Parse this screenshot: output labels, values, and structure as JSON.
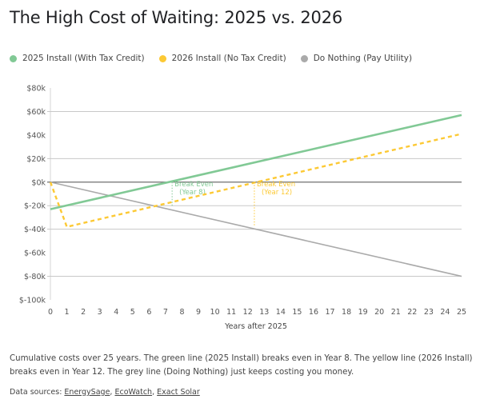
{
  "title": "The High Cost of Waiting: 2025 vs. 2026",
  "legend": [
    {
      "label": "2025 Install (With Tax Credit)",
      "color": "#81c995"
    },
    {
      "label": "2026 Install (No Tax Credit)",
      "color": "#fcc934"
    },
    {
      "label": "Do Nothing (Pay Utility)",
      "color": "#aaaaaa"
    }
  ],
  "chart_data": {
    "type": "line",
    "title": "The High Cost of Waiting: 2025 vs. 2026",
    "xlabel": "Years after 2025",
    "ylabel": "",
    "xlim": [
      0,
      25
    ],
    "ylim": [
      -100000,
      80000
    ],
    "x_ticks": [
      0,
      1,
      2,
      3,
      4,
      5,
      6,
      7,
      8,
      9,
      10,
      11,
      12,
      13,
      14,
      15,
      16,
      17,
      18,
      19,
      20,
      21,
      22,
      23,
      24,
      25
    ],
    "y_ticks": [
      80000,
      60000,
      40000,
      20000,
      0,
      -20000,
      -40000,
      -60000,
      -80000,
      -100000
    ],
    "y_tick_labels": [
      "$80k",
      "$60k",
      "$40k",
      "$20k",
      "$0k",
      "$-20k",
      "$-40k",
      "$-60k",
      "$-80k",
      "$-100k"
    ],
    "gridlines": [
      60000,
      20000,
      -20000,
      -40000,
      -80000
    ],
    "zero_line": true,
    "legend_position": "top-left",
    "series": [
      {
        "name": "2025 Install (With Tax Credit)",
        "color": "#81c995",
        "style": "solid",
        "x": [
          0,
          25
        ],
        "y": [
          -23000,
          57000
        ]
      },
      {
        "name": "2026 Install (No Tax Credit)",
        "color": "#fcc934",
        "style": "dashed",
        "x": [
          0,
          1,
          25
        ],
        "y": [
          0,
          -38000,
          41000
        ]
      },
      {
        "name": "Do Nothing (Pay Utility)",
        "color": "#aaaaaa",
        "style": "solid",
        "x": [
          0,
          25
        ],
        "y": [
          0,
          -80000
        ]
      }
    ],
    "annotations": [
      {
        "text_line1": "Break Even",
        "text_line2": "(Year 8)",
        "x": 7.4,
        "y_from": 0,
        "y_to": -20000,
        "color": "#81c995"
      },
      {
        "text_line1": "Break Even",
        "text_line2": "(Year 12)",
        "x": 12.4,
        "y_from": 0,
        "y_to": -38000,
        "color": "#fcc934"
      }
    ]
  },
  "caption": "Cumulative costs over 25 years. The green line (2025 Install) breaks even in Year 8. The yellow line (2026 Install) breaks even in Year 12. The grey line (Doing Nothing) just keeps costing you money.",
  "sources": {
    "prefix": "Data sources: ",
    "links": [
      "EnergySage",
      "EcoWatch",
      "Exact Solar"
    ]
  }
}
